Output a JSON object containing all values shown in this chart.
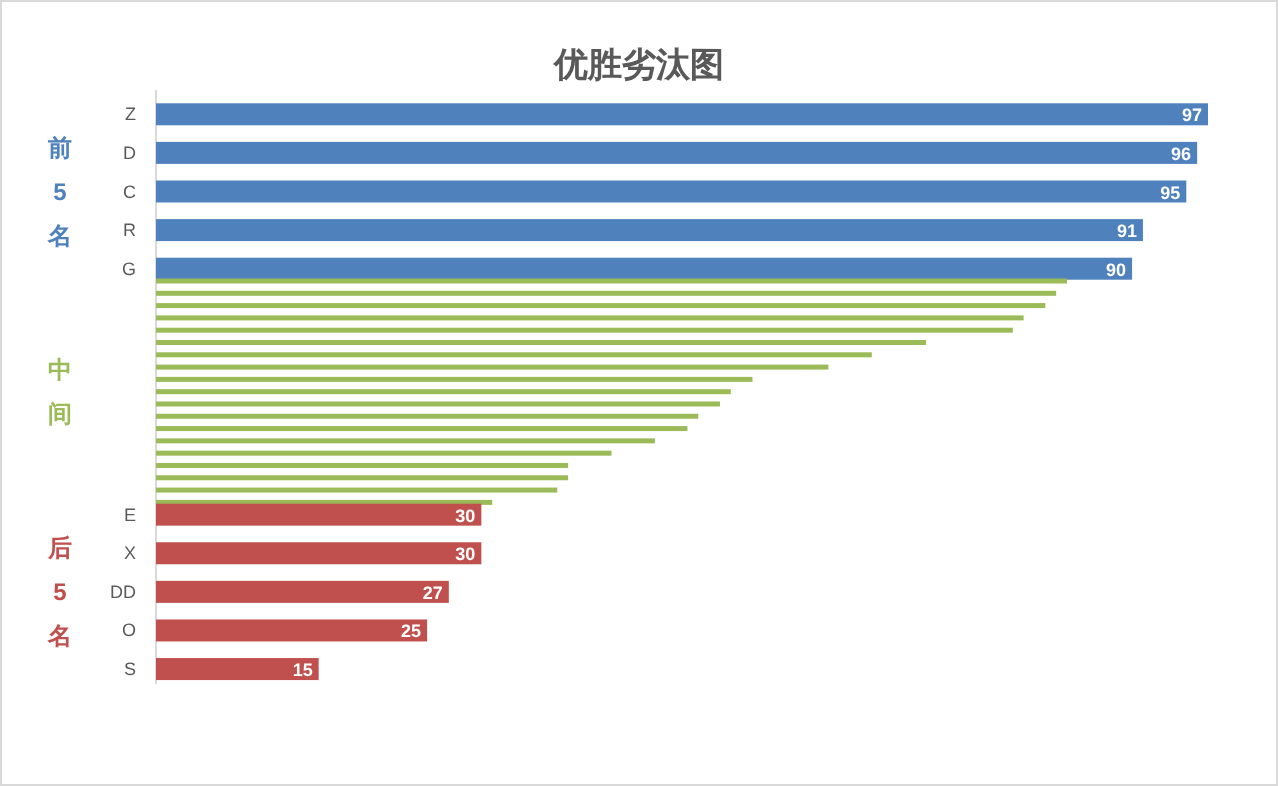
{
  "chart_data": {
    "type": "bar",
    "orientation": "horizontal",
    "title": "优胜劣汰图",
    "categories": [
      "Z",
      "D",
      "C",
      "R",
      "G",
      null,
      null,
      null,
      null,
      null,
      null,
      null,
      null,
      null,
      null,
      null,
      null,
      null,
      null,
      null,
      null,
      null,
      null,
      null,
      "E",
      "X",
      "DD",
      "O",
      "S"
    ],
    "series": [
      {
        "name": "前5名",
        "color": "#4f81bd",
        "values": [
          97,
          96,
          95,
          91,
          90,
          null,
          null,
          null,
          null,
          null,
          null,
          null,
          null,
          null,
          null,
          null,
          null,
          null,
          null,
          null,
          null,
          null,
          null,
          null,
          null,
          null,
          null,
          null,
          null
        ],
        "value_labels": [
          "97",
          "96",
          "95",
          "91",
          "90",
          null,
          null,
          null,
          null,
          null,
          null,
          null,
          null,
          null,
          null,
          null,
          null,
          null,
          null,
          null,
          null,
          null,
          null,
          null,
          null,
          null,
          null,
          null,
          null
        ]
      },
      {
        "name": "中间",
        "color": "#9bbb59",
        "values": [
          null,
          null,
          null,
          null,
          null,
          84,
          83,
          82,
          80,
          79,
          71,
          66,
          62,
          55,
          53,
          52,
          50,
          49,
          46,
          42,
          38,
          38,
          37,
          31,
          null,
          null,
          null,
          null,
          null
        ]
      },
      {
        "name": "后5名",
        "color": "#c0504d",
        "values": [
          null,
          null,
          null,
          null,
          null,
          null,
          null,
          null,
          null,
          null,
          null,
          null,
          null,
          null,
          null,
          null,
          null,
          null,
          null,
          null,
          null,
          null,
          null,
          null,
          30,
          30,
          27,
          25,
          15
        ],
        "value_labels": [
          null,
          null,
          null,
          null,
          null,
          null,
          null,
          null,
          null,
          null,
          null,
          null,
          null,
          null,
          null,
          null,
          null,
          null,
          null,
          null,
          null,
          null,
          null,
          null,
          "30",
          "30",
          "27",
          "25",
          "15"
        ]
      }
    ]
  }
}
